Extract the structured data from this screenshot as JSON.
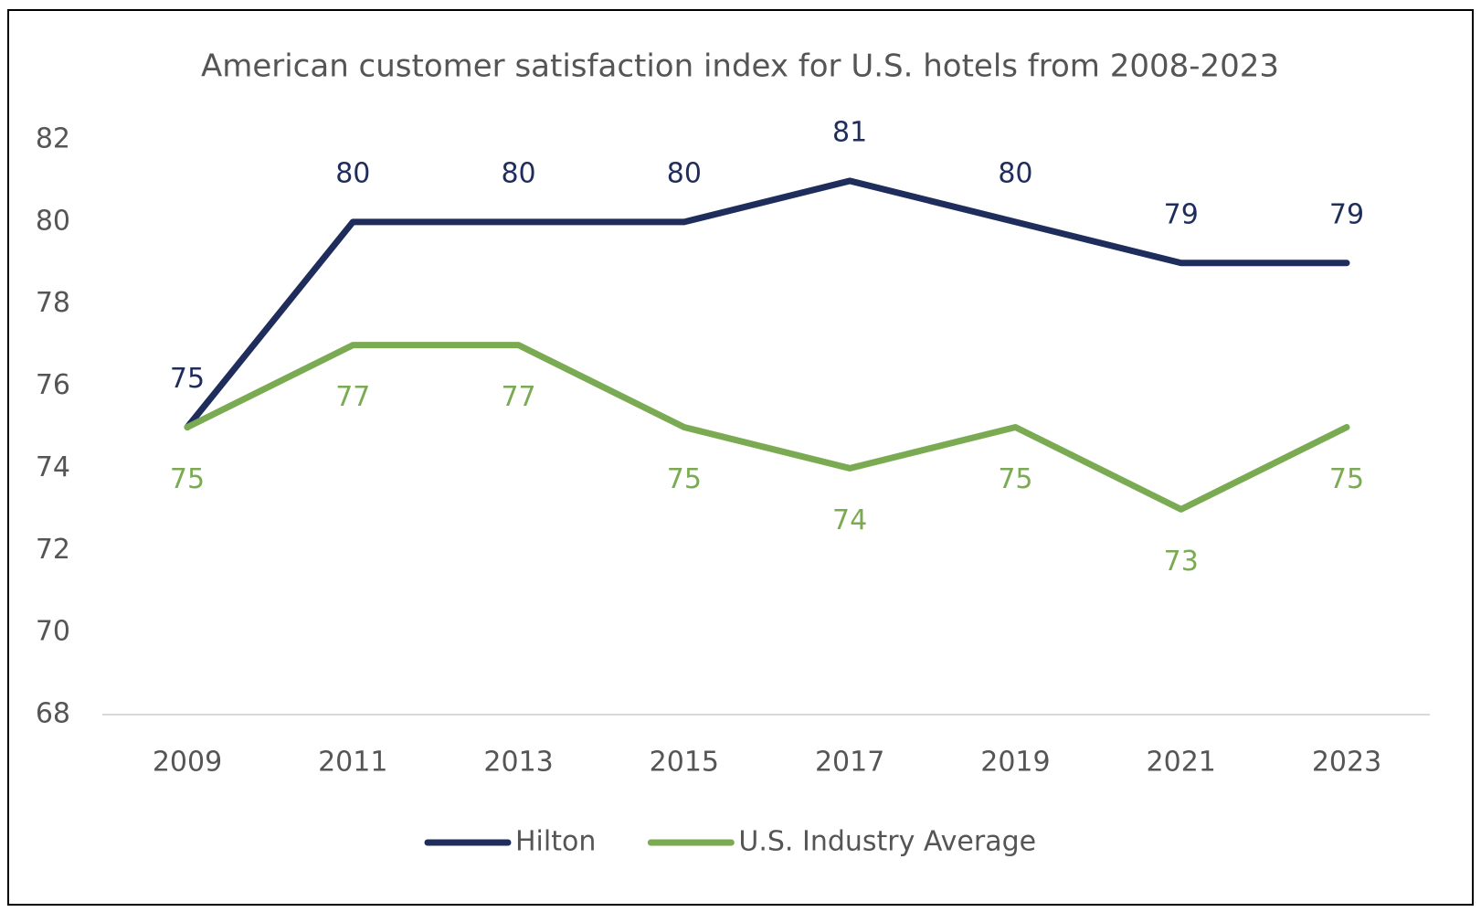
{
  "chart_data": {
    "type": "line",
    "title": "American customer satisfaction index for U.S. hotels from 2008-2023",
    "categories": [
      "2009",
      "2011",
      "2013",
      "2015",
      "2017",
      "2019",
      "2021",
      "2023"
    ],
    "series": [
      {
        "name": "Hilton",
        "color": "#1f2d5c",
        "values": [
          75,
          80,
          80,
          80,
          81,
          80,
          79,
          79
        ]
      },
      {
        "name": "U.S. Industry Average",
        "color": "#7aab52",
        "values": [
          75,
          77,
          77,
          75,
          74,
          75,
          73,
          75
        ]
      }
    ],
    "ylim": [
      68,
      82
    ],
    "yticks": [
      68,
      70,
      72,
      74,
      76,
      78,
      80,
      82
    ],
    "grid": false,
    "legend": "bottom"
  }
}
